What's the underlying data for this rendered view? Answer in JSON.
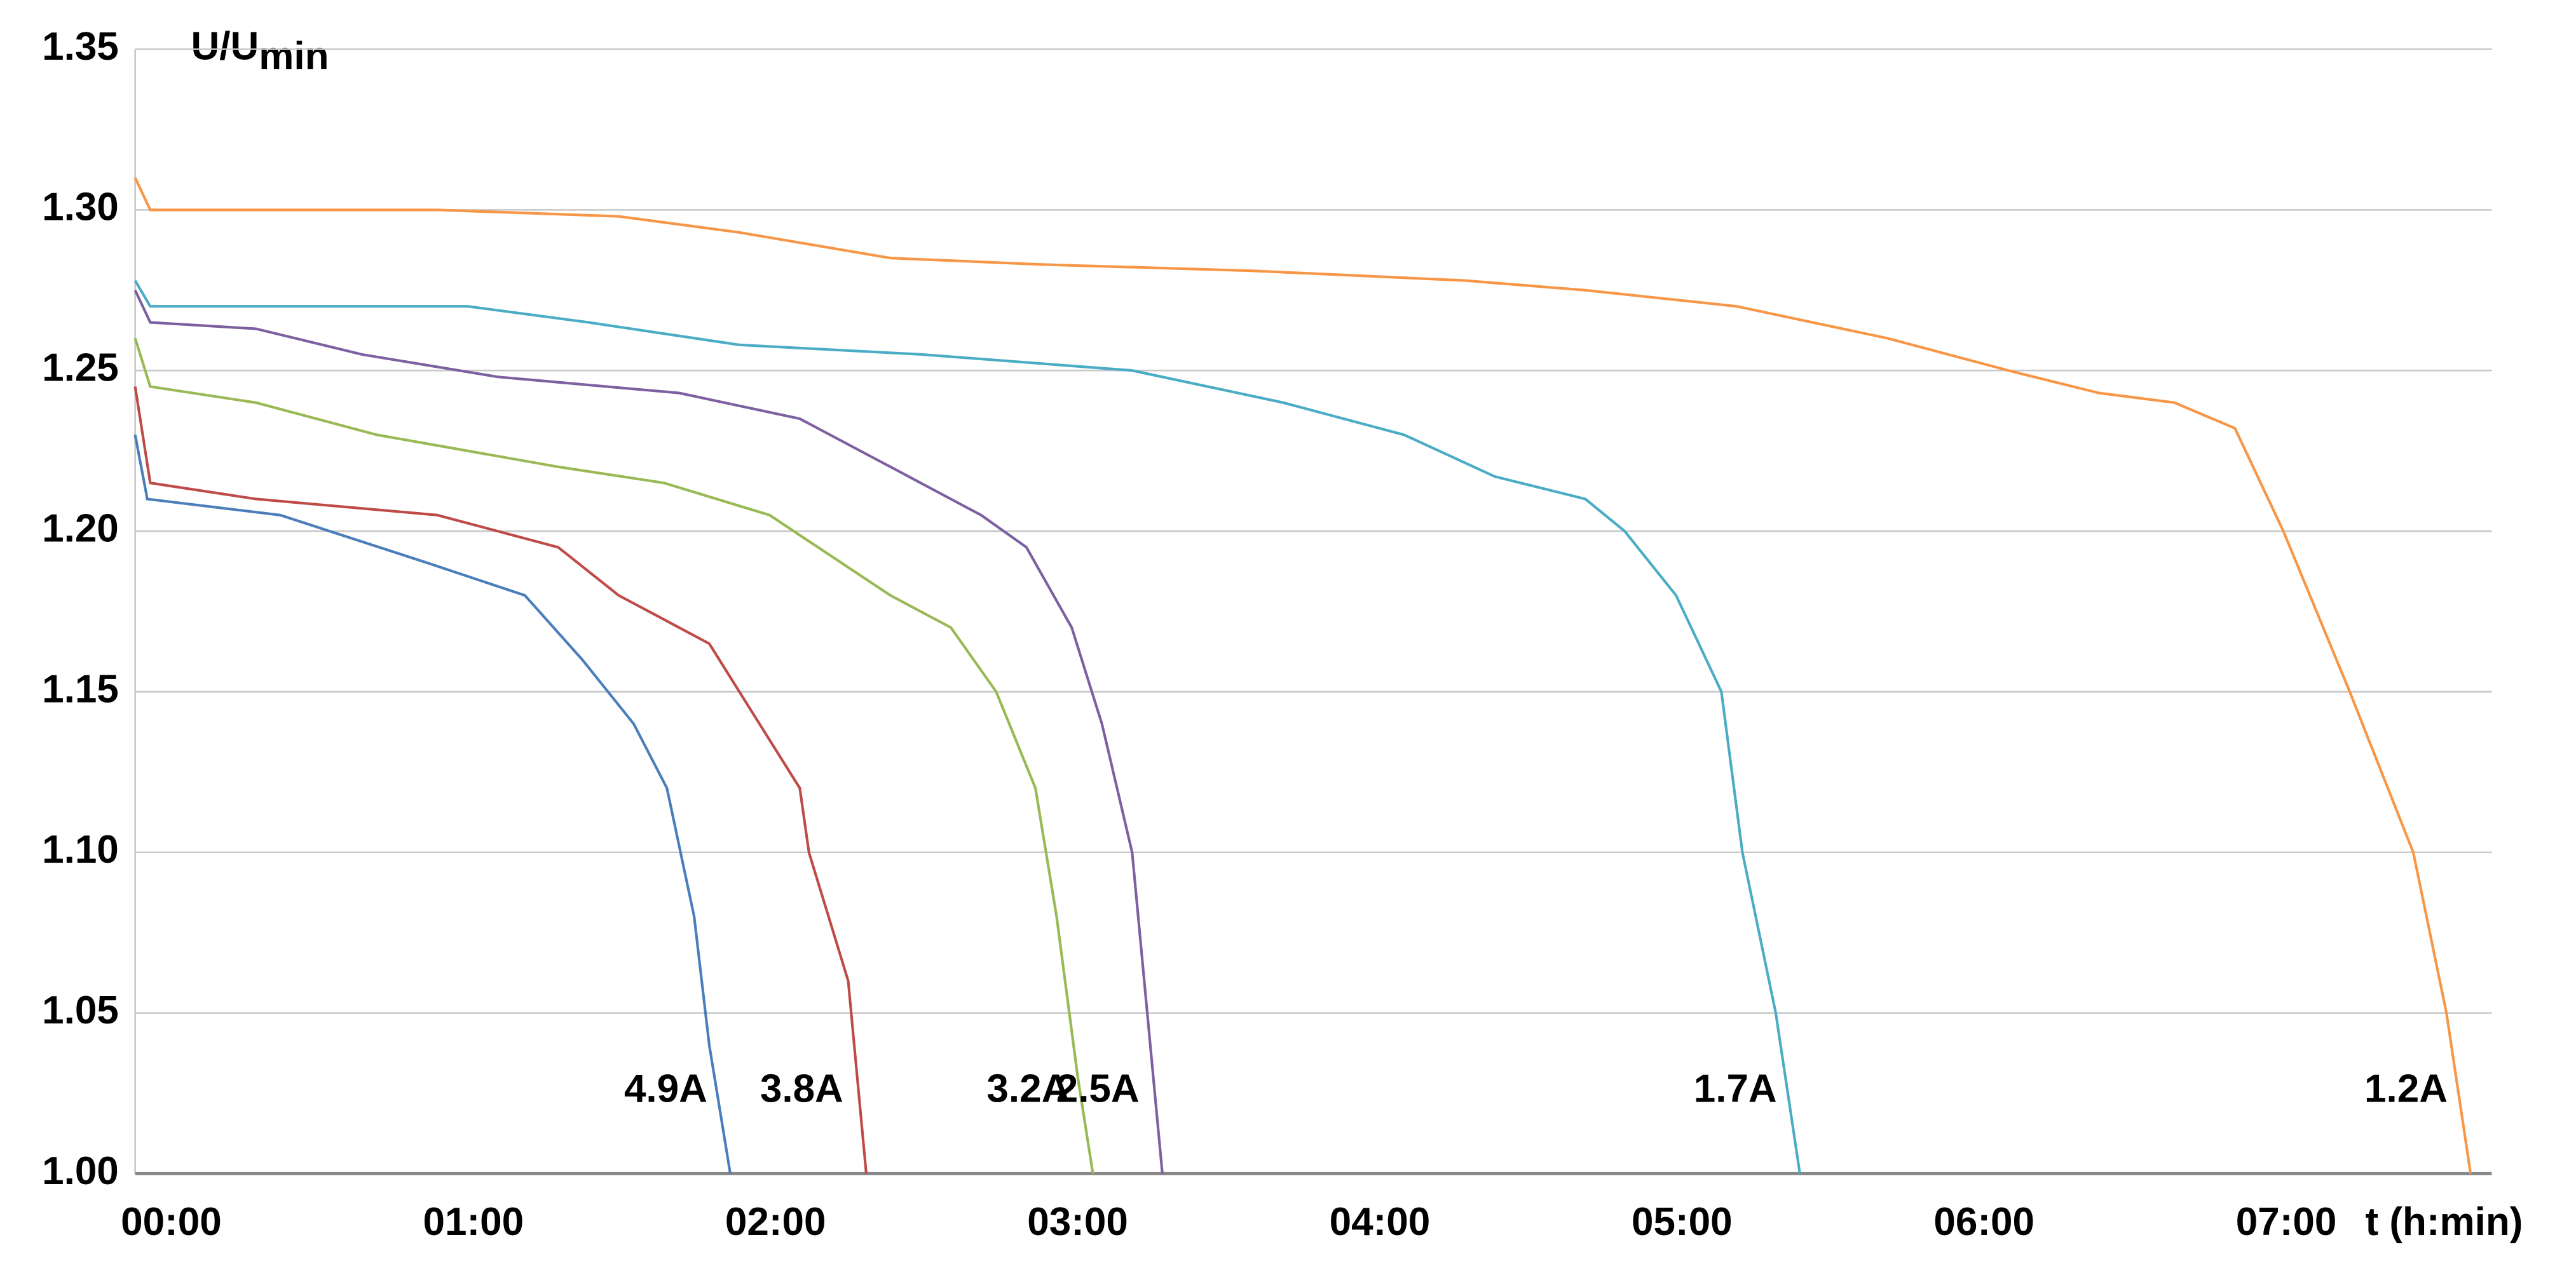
{
  "chart_data": {
    "type": "line",
    "y_label": "U/U",
    "y_label_sub": "min",
    "x_label": "t (h:min)",
    "xlim": [
      0,
      7.8
    ],
    "ylim": [
      1.0,
      1.35
    ],
    "xticks": [
      {
        "value": 0,
        "label": "00:00"
      },
      {
        "value": 1,
        "label": "01:00"
      },
      {
        "value": 2,
        "label": "02:00"
      },
      {
        "value": 3,
        "label": "03:00"
      },
      {
        "value": 4,
        "label": "04:00"
      },
      {
        "value": 5,
        "label": "05:00"
      },
      {
        "value": 6,
        "label": "06:00"
      },
      {
        "value": 7,
        "label": "07:00"
      }
    ],
    "yticks": [
      {
        "value": 1.0,
        "label": "1.00"
      },
      1.05,
      {
        "value": 1.1,
        "label": "1.10"
      },
      1.15,
      {
        "value": 1.2,
        "label": "1.20"
      },
      1.25,
      {
        "value": 1.3,
        "label": "1.30"
      },
      1.35
    ],
    "grid": true,
    "series": [
      {
        "name": "4.9A",
        "color": "#4a7ebb",
        "x": [
          0,
          0.04,
          0.48,
          0.97,
          1.29,
          1.48,
          1.65,
          1.76,
          1.85,
          1.9,
          1.97
        ],
        "values": [
          1.23,
          1.21,
          1.205,
          1.19,
          1.18,
          1.16,
          1.14,
          1.12,
          1.08,
          1.04,
          1.0
        ]
      },
      {
        "name": "3.8A",
        "color": "#be4b48",
        "x": [
          0,
          0.05,
          0.4,
          1.0,
          1.4,
          1.6,
          1.9,
          2.0,
          2.2,
          2.23,
          2.36,
          2.42
        ],
        "values": [
          1.245,
          1.215,
          1.21,
          1.205,
          1.195,
          1.18,
          1.165,
          1.15,
          1.12,
          1.1,
          1.06,
          1.0
        ]
      },
      {
        "name": "3.2A",
        "color": "#98b954",
        "x": [
          0,
          0.05,
          0.4,
          0.8,
          1.4,
          1.75,
          2.1,
          2.5,
          2.7,
          2.85,
          2.98,
          3.05,
          3.12,
          3.17
        ],
        "values": [
          1.26,
          1.245,
          1.24,
          1.23,
          1.22,
          1.215,
          1.205,
          1.18,
          1.17,
          1.15,
          1.12,
          1.08,
          1.03,
          1.0
        ]
      },
      {
        "name": "2.5A",
        "color": "#7d60a0",
        "x": [
          0,
          0.05,
          0.4,
          0.75,
          1.2,
          1.8,
          2.2,
          2.5,
          2.8,
          2.95,
          3.1,
          3.2,
          3.3,
          3.35,
          3.4
        ],
        "values": [
          1.275,
          1.265,
          1.263,
          1.255,
          1.248,
          1.243,
          1.235,
          1.22,
          1.205,
          1.195,
          1.17,
          1.14,
          1.1,
          1.05,
          1.0
        ]
      },
      {
        "name": "1.7A",
        "color": "#4aacc5",
        "x": [
          0,
          0.05,
          1.1,
          1.5,
          2.0,
          2.6,
          3.3,
          3.8,
          4.2,
          4.5,
          4.8,
          4.93,
          5.1,
          5.25,
          5.32,
          5.43,
          5.51
        ],
        "values": [
          1.278,
          1.27,
          1.27,
          1.265,
          1.258,
          1.255,
          1.25,
          1.24,
          1.23,
          1.217,
          1.21,
          1.2,
          1.18,
          1.15,
          1.1,
          1.05,
          1.0
        ]
      },
      {
        "name": "1.2A",
        "color": "#f79646",
        "x": [
          0,
          0.05,
          1.0,
          1.6,
          2.0,
          2.5,
          3.0,
          3.7,
          4.4,
          4.8,
          5.3,
          5.8,
          6.2,
          6.5,
          6.75,
          6.95,
          7.11,
          7.33,
          7.54,
          7.65,
          7.73
        ],
        "values": [
          1.31,
          1.3,
          1.3,
          1.298,
          1.293,
          1.285,
          1.283,
          1.281,
          1.278,
          1.275,
          1.27,
          1.26,
          1.25,
          1.243,
          1.24,
          1.232,
          1.2,
          1.15,
          1.1,
          1.05,
          1.0
        ]
      }
    ]
  }
}
